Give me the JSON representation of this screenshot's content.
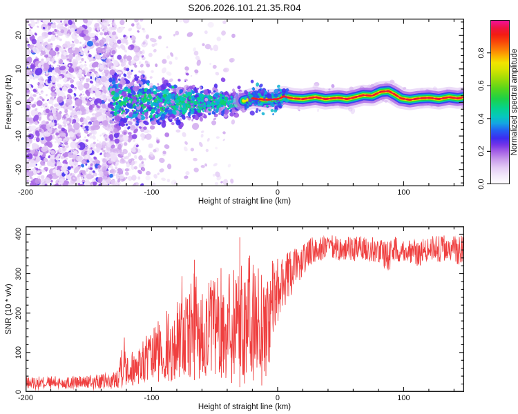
{
  "title": "S206.2026.101.21.35.R04",
  "frame_color": "#1a1a1a",
  "background": "#ffffff",
  "chart_data": [
    {
      "type": "heatmap",
      "subtype": "doppler-spectrogram",
      "title": "S206.2026.101.21.35.R04",
      "xlabel": "Height of straight line (km)",
      "ylabel": "Frequency (Hz)",
      "xlim": [
        -200,
        148
      ],
      "ylim": [
        -25,
        25
      ],
      "x_tick_values": [
        -200,
        -100,
        0,
        100
      ],
      "x_tick_labels": [
        "-200",
        "-100",
        "0",
        "100"
      ],
      "x_minor_step": 20,
      "y_tick_values": [
        -20,
        -10,
        0,
        10,
        20
      ],
      "y_tick_labels": [
        "-20",
        "-10",
        "0",
        "10",
        "20"
      ],
      "y_minor_step": 2,
      "grid": false,
      "seed": 7,
      "colorbar": {
        "label": "Normalized spectral amplitude",
        "tick_values": [
          0,
          0.2,
          0.4,
          0.6,
          0.8
        ],
        "tick_labels": [
          "0.0",
          "0.2",
          "0.4",
          "0.6",
          "0.8"
        ],
        "range": [
          0,
          1
        ],
        "colormap_stops": [
          [
            0.0,
            "#ffffff"
          ],
          [
            0.05,
            "#f3eafb"
          ],
          [
            0.1,
            "#e4ccf5"
          ],
          [
            0.15,
            "#c99ceb"
          ],
          [
            0.2,
            "#a45fe6"
          ],
          [
            0.24,
            "#7434e8"
          ],
          [
            0.28,
            "#3d2cf0"
          ],
          [
            0.33,
            "#2262f2"
          ],
          [
            0.37,
            "#14a4e2"
          ],
          [
            0.41,
            "#06c6c0"
          ],
          [
            0.46,
            "#05d290"
          ],
          [
            0.52,
            "#1cd148"
          ],
          [
            0.58,
            "#55d61c"
          ],
          [
            0.64,
            "#9bdc08"
          ],
          [
            0.7,
            "#d9e400"
          ],
          [
            0.74,
            "#f2e400"
          ],
          [
            0.78,
            "#fbb100"
          ],
          [
            0.82,
            "#fb7d06"
          ],
          [
            0.87,
            "#f8440a"
          ],
          [
            0.91,
            "#f31d12"
          ],
          [
            0.95,
            "#ee1340"
          ],
          [
            1.0,
            "#f111a0"
          ]
        ]
      },
      "regions": {
        "noise": {
          "x_range": [
            -200,
            -131
          ],
          "freq_range": [
            -25,
            25
          ],
          "amp_range": [
            0.05,
            0.34
          ],
          "count": 1500,
          "taper": {
            "start": -131,
            "width": 26,
            "count": 260
          }
        },
        "sparse": {
          "x_range": [
            -138,
            -34
          ],
          "freq_range": [
            -25,
            25
          ],
          "amp_range": [
            0.04,
            0.16
          ],
          "count": 330
        },
        "funnel": {
          "x_range": [
            -133,
            -26
          ],
          "center": 0,
          "spread_start": 8.5,
          "spread_end": 2.2,
          "amp_range": [
            0.14,
            0.5
          ],
          "count": 1050,
          "accent_count": 130,
          "accent_amp": [
            0.36,
            0.49
          ]
        },
        "band": {
          "x_range": [
            -27,
            148
          ],
          "centerline": [
            [
              -27,
              0.5
            ],
            [
              -20,
              1.2
            ],
            [
              -10,
              0.8
            ],
            [
              0,
              1.0
            ],
            [
              5,
              1.8
            ],
            [
              12,
              1.2
            ],
            [
              20,
              1.0
            ],
            [
              30,
              1.6
            ],
            [
              38,
              1.0
            ],
            [
              48,
              1.4
            ],
            [
              55,
              1.0
            ],
            [
              62,
              1.6
            ],
            [
              68,
              2.2
            ],
            [
              75,
              2.0
            ],
            [
              82,
              3.2
            ],
            [
              88,
              3.4
            ],
            [
              93,
              2.4
            ],
            [
              98,
              1.2
            ],
            [
              105,
              0.8
            ],
            [
              112,
              1.2
            ],
            [
              120,
              1.4
            ],
            [
              128,
              1.0
            ],
            [
              136,
              1.6
            ],
            [
              143,
              1.2
            ],
            [
              148,
              1.6
            ]
          ],
          "layers": [
            [
              0.12,
              30,
              0.5
            ],
            [
              0.2,
              22,
              0.75
            ],
            [
              0.3,
              15,
              0.95
            ],
            [
              0.42,
              11,
              1
            ],
            [
              0.52,
              8,
              1
            ],
            [
              0.66,
              5.5,
              1
            ],
            [
              0.74,
              3.8,
              1
            ]
          ],
          "core_amplitude": 0.9,
          "core_dash": [
            6,
            4.5
          ],
          "fuzz_count": 240,
          "head_fuzz_count": 130
        }
      }
    },
    {
      "type": "line",
      "color": "#ee3636",
      "xlabel": "Height of straight line (km)",
      "ylabel": "SNR (10 * v/v)",
      "xlim": [
        -200,
        148
      ],
      "ylim": [
        0,
        420
      ],
      "x_tick_values": [
        -200,
        -100,
        0,
        100
      ],
      "x_tick_labels": [
        "-200",
        "-100",
        "0",
        "100"
      ],
      "x_minor_step": 20,
      "y_tick_values": [
        0,
        100,
        200,
        300,
        400
      ],
      "y_tick_labels": [
        "0",
        "100",
        "200",
        "300",
        "400"
      ],
      "y_minor_step": 20,
      "grid": false,
      "seed": 13,
      "envelope": [
        [
          -200,
          8,
          38
        ],
        [
          -185,
          8,
          40
        ],
        [
          -170,
          8,
          40
        ],
        [
          -155,
          8,
          42
        ],
        [
          -142,
          8,
          44
        ],
        [
          -132,
          8,
          46
        ],
        [
          -128,
          10,
          55
        ],
        [
          -126,
          12,
          90
        ],
        [
          -124,
          14,
          150
        ],
        [
          -121,
          14,
          155
        ],
        [
          -118,
          15,
          120
        ],
        [
          -114,
          16,
          100
        ],
        [
          -111,
          18,
          150
        ],
        [
          -108,
          18,
          120
        ],
        [
          -104,
          20,
          160
        ],
        [
          -100,
          22,
          140
        ],
        [
          -96,
          22,
          200
        ],
        [
          -92,
          24,
          170
        ],
        [
          -88,
          26,
          215
        ],
        [
          -84,
          26,
          180
        ],
        [
          -80,
          28,
          230
        ],
        [
          -76,
          28,
          330
        ],
        [
          -73,
          30,
          240
        ],
        [
          -70,
          32,
          260
        ],
        [
          -66,
          30,
          340
        ],
        [
          -62,
          34,
          260
        ],
        [
          -58,
          36,
          280
        ],
        [
          -54,
          34,
          300
        ],
        [
          -50,
          38,
          290
        ],
        [
          -46,
          30,
          310
        ],
        [
          -42,
          24,
          330
        ],
        [
          -38,
          18,
          340
        ],
        [
          -34,
          14,
          360
        ],
        [
          -30,
          12,
          395
        ],
        [
          -27,
          16,
          360
        ],
        [
          -24,
          20,
          350
        ],
        [
          -21,
          14,
          345
        ],
        [
          -18,
          25,
          340
        ],
        [
          -15,
          30,
          335
        ],
        [
          -12,
          10,
          330
        ],
        [
          -9,
          15,
          320
        ],
        [
          -6,
          80,
          330
        ],
        [
          -3,
          140,
          335
        ],
        [
          0,
          170,
          340
        ],
        [
          3,
          200,
          345
        ],
        [
          6,
          220,
          350
        ],
        [
          9,
          235,
          355
        ],
        [
          12,
          250,
          360
        ],
        [
          15,
          265,
          368
        ],
        [
          18,
          280,
          375
        ],
        [
          21,
          295,
          382
        ],
        [
          24,
          310,
          388
        ],
        [
          27,
          322,
          392
        ],
        [
          32,
          330,
          396
        ],
        [
          40,
          335,
          398
        ],
        [
          50,
          332,
          396
        ],
        [
          60,
          330,
          394
        ],
        [
          70,
          334,
          396
        ],
        [
          78,
          330,
          392
        ],
        [
          84,
          320,
          390
        ],
        [
          88,
          300,
          394
        ],
        [
          92,
          330,
          396
        ],
        [
          100,
          332,
          390
        ],
        [
          106,
          326,
          388
        ],
        [
          112,
          318,
          386
        ],
        [
          118,
          330,
          394
        ],
        [
          124,
          334,
          398
        ],
        [
          130,
          326,
          400
        ],
        [
          136,
          332,
          396
        ],
        [
          142,
          320,
          398
        ],
        [
          148,
          330,
          396
        ]
      ],
      "spikes": [
        [
          -66,
          335
        ],
        [
          -30,
          392
        ]
      ]
    }
  ]
}
